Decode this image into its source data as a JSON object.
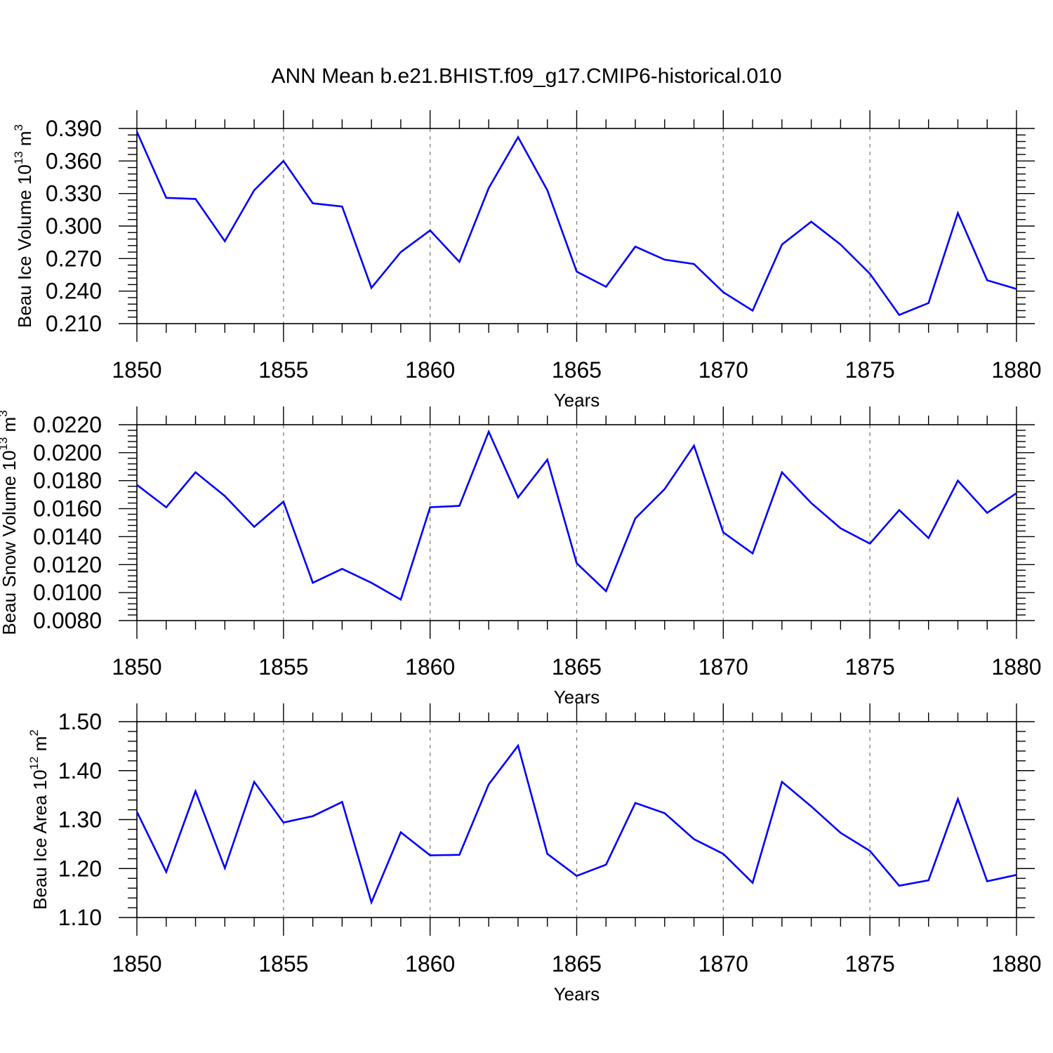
{
  "title": "ANN Mean b.e21.BHIST.f09_g17.CMIP6-historical.010",
  "chart_data": [
    {
      "type": "line",
      "xlabel": "Years",
      "ylabel": "Beau Ice Volume 10",
      "ylabel_exp": "13",
      "ylabel_unit": " m",
      "ylabel_unit_exp": "3",
      "xlim": [
        1850,
        1880
      ],
      "ylim": [
        0.21,
        0.39
      ],
      "x_ticks": [
        1850,
        1855,
        1860,
        1865,
        1870,
        1875,
        1880
      ],
      "x_tick_labels": [
        "1850",
        "1855",
        "1860",
        "1865",
        "1870",
        "1875",
        "1880"
      ],
      "y_ticks": [
        0.21,
        0.24,
        0.27,
        0.3,
        0.33,
        0.36,
        0.39
      ],
      "y_tick_labels": [
        "0.210",
        "0.240",
        "0.270",
        "0.300",
        "0.330",
        "0.360",
        "0.390"
      ],
      "y_minor_step": 0.006,
      "series": [
        {
          "name": "Beau Ice Volume",
          "color": "#0000ff",
          "x": [
            1850,
            1851,
            1852,
            1853,
            1854,
            1855,
            1856,
            1857,
            1858,
            1859,
            1860,
            1861,
            1862,
            1863,
            1864,
            1865,
            1866,
            1867,
            1868,
            1869,
            1870,
            1871,
            1872,
            1873,
            1874,
            1875,
            1876,
            1877,
            1878,
            1879,
            1880
          ],
          "values": [
            0.387,
            0.326,
            0.325,
            0.286,
            0.333,
            0.36,
            0.321,
            0.318,
            0.243,
            0.276,
            0.296,
            0.267,
            0.335,
            0.382,
            0.333,
            0.258,
            0.244,
            0.281,
            0.269,
            0.265,
            0.239,
            0.222,
            0.283,
            0.304,
            0.283,
            0.256,
            0.218,
            0.229,
            0.312,
            0.25,
            0.242
          ]
        }
      ]
    },
    {
      "type": "line",
      "xlabel": "Years",
      "ylabel": "Beau Snow Volume 10",
      "ylabel_exp": "13",
      "ylabel_unit": " m",
      "ylabel_unit_exp": "3",
      "xlim": [
        1850,
        1880
      ],
      "ylim": [
        0.008,
        0.022
      ],
      "x_ticks": [
        1850,
        1855,
        1860,
        1865,
        1870,
        1875,
        1880
      ],
      "x_tick_labels": [
        "1850",
        "1855",
        "1860",
        "1865",
        "1870",
        "1875",
        "1880"
      ],
      "y_ticks": [
        0.008,
        0.01,
        0.012,
        0.014,
        0.016,
        0.018,
        0.02,
        0.022
      ],
      "y_tick_labels": [
        "0.0080",
        "0.0100",
        "0.0120",
        "0.0140",
        "0.0160",
        "0.0180",
        "0.0200",
        "0.0220"
      ],
      "y_minor_step": 0.0004,
      "series": [
        {
          "name": "Beau Snow Volume",
          "color": "#0000ff",
          "x": [
            1850,
            1851,
            1852,
            1853,
            1854,
            1855,
            1856,
            1857,
            1858,
            1859,
            1860,
            1861,
            1862,
            1863,
            1864,
            1865,
            1866,
            1867,
            1868,
            1869,
            1870,
            1871,
            1872,
            1873,
            1874,
            1875,
            1876,
            1877,
            1878,
            1879,
            1880
          ],
          "values": [
            0.0177,
            0.0161,
            0.0186,
            0.0169,
            0.0147,
            0.0165,
            0.0107,
            0.0117,
            0.0107,
            0.0095,
            0.0161,
            0.0162,
            0.0215,
            0.0168,
            0.0195,
            0.0121,
            0.0101,
            0.0153,
            0.0174,
            0.0205,
            0.0143,
            0.0128,
            0.0186,
            0.0164,
            0.0146,
            0.0135,
            0.0159,
            0.0139,
            0.018,
            0.0157,
            0.0171
          ]
        }
      ]
    },
    {
      "type": "line",
      "xlabel": "Years",
      "ylabel": "Beau Ice Area 10",
      "ylabel_exp": "12",
      "ylabel_unit": " m",
      "ylabel_unit_exp": "2",
      "xlim": [
        1850,
        1880
      ],
      "ylim": [
        1.1,
        1.5
      ],
      "x_ticks": [
        1850,
        1855,
        1860,
        1865,
        1870,
        1875,
        1880
      ],
      "x_tick_labels": [
        "1850",
        "1855",
        "1860",
        "1865",
        "1870",
        "1875",
        "1880"
      ],
      "y_ticks": [
        1.1,
        1.2,
        1.3,
        1.4,
        1.5
      ],
      "y_tick_labels": [
        "1.10",
        "1.20",
        "1.30",
        "1.40",
        "1.50"
      ],
      "y_minor_step": 0.02,
      "series": [
        {
          "name": "Beau Ice Area",
          "color": "#0000ff",
          "x": [
            1850,
            1851,
            1852,
            1853,
            1854,
            1855,
            1856,
            1857,
            1858,
            1859,
            1860,
            1861,
            1862,
            1863,
            1864,
            1865,
            1866,
            1867,
            1868,
            1869,
            1870,
            1871,
            1872,
            1873,
            1874,
            1875,
            1876,
            1877,
            1878,
            1879,
            1880
          ],
          "values": [
            1.316,
            1.193,
            1.358,
            1.201,
            1.377,
            1.294,
            1.307,
            1.336,
            1.131,
            1.274,
            1.227,
            1.228,
            1.372,
            1.451,
            1.23,
            1.185,
            1.208,
            1.334,
            1.313,
            1.26,
            1.23,
            1.171,
            1.377,
            1.327,
            1.273,
            1.236,
            1.165,
            1.176,
            1.342,
            1.174,
            1.187
          ]
        }
      ]
    }
  ]
}
